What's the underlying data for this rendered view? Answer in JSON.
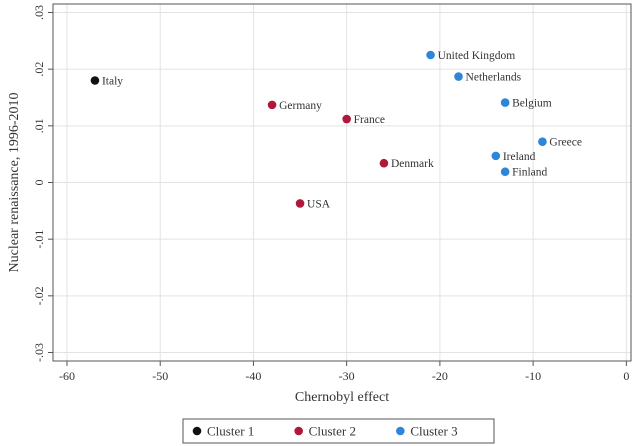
{
  "chart_data": {
    "type": "scatter",
    "title": "",
    "xlabel": "Chernobyl effect",
    "ylabel": "Nuclear renaissance, 1996-2010",
    "xlim": [
      -61.5,
      0.5
    ],
    "ylim": [
      -0.0315,
      0.0315
    ],
    "xticks": [
      -60,
      -50,
      -40,
      -30,
      -20,
      -10,
      0
    ],
    "xtick_labels": [
      "-60",
      "-50",
      "-40",
      "-30",
      "-20",
      "-10",
      "0"
    ],
    "yticks": [
      -0.03,
      -0.02,
      -0.01,
      0,
      0.01,
      0.02,
      0.03
    ],
    "ytick_labels": [
      "-.03",
      "-.02",
      "-.01",
      "0",
      ".01",
      ".02",
      ".03"
    ],
    "grid": true,
    "legend_position": "bottom",
    "series": [
      {
        "name": "Cluster 1",
        "color": "#111111",
        "points": [
          {
            "label": "Italy",
            "x": -57,
            "y": 0.018
          }
        ]
      },
      {
        "name": "Cluster 2",
        "color": "#b0173a",
        "points": [
          {
            "label": "Germany",
            "x": -38,
            "y": 0.0137
          },
          {
            "label": "France",
            "x": -30,
            "y": 0.0112
          },
          {
            "label": "Denmark",
            "x": -26,
            "y": 0.0034
          },
          {
            "label": "USA",
            "x": -35,
            "y": -0.0037
          }
        ]
      },
      {
        "name": "Cluster 3",
        "color": "#2d86d8",
        "points": [
          {
            "label": "United Kingdom",
            "x": -21,
            "y": 0.0225
          },
          {
            "label": "Netherlands",
            "x": -18,
            "y": 0.0187
          },
          {
            "label": "Belgium",
            "x": -13,
            "y": 0.0141
          },
          {
            "label": "Greece",
            "x": -9,
            "y": 0.0072
          },
          {
            "label": "Ireland",
            "x": -14,
            "y": 0.0047
          },
          {
            "label": "Finland",
            "x": -13,
            "y": 0.0019
          }
        ]
      }
    ]
  }
}
